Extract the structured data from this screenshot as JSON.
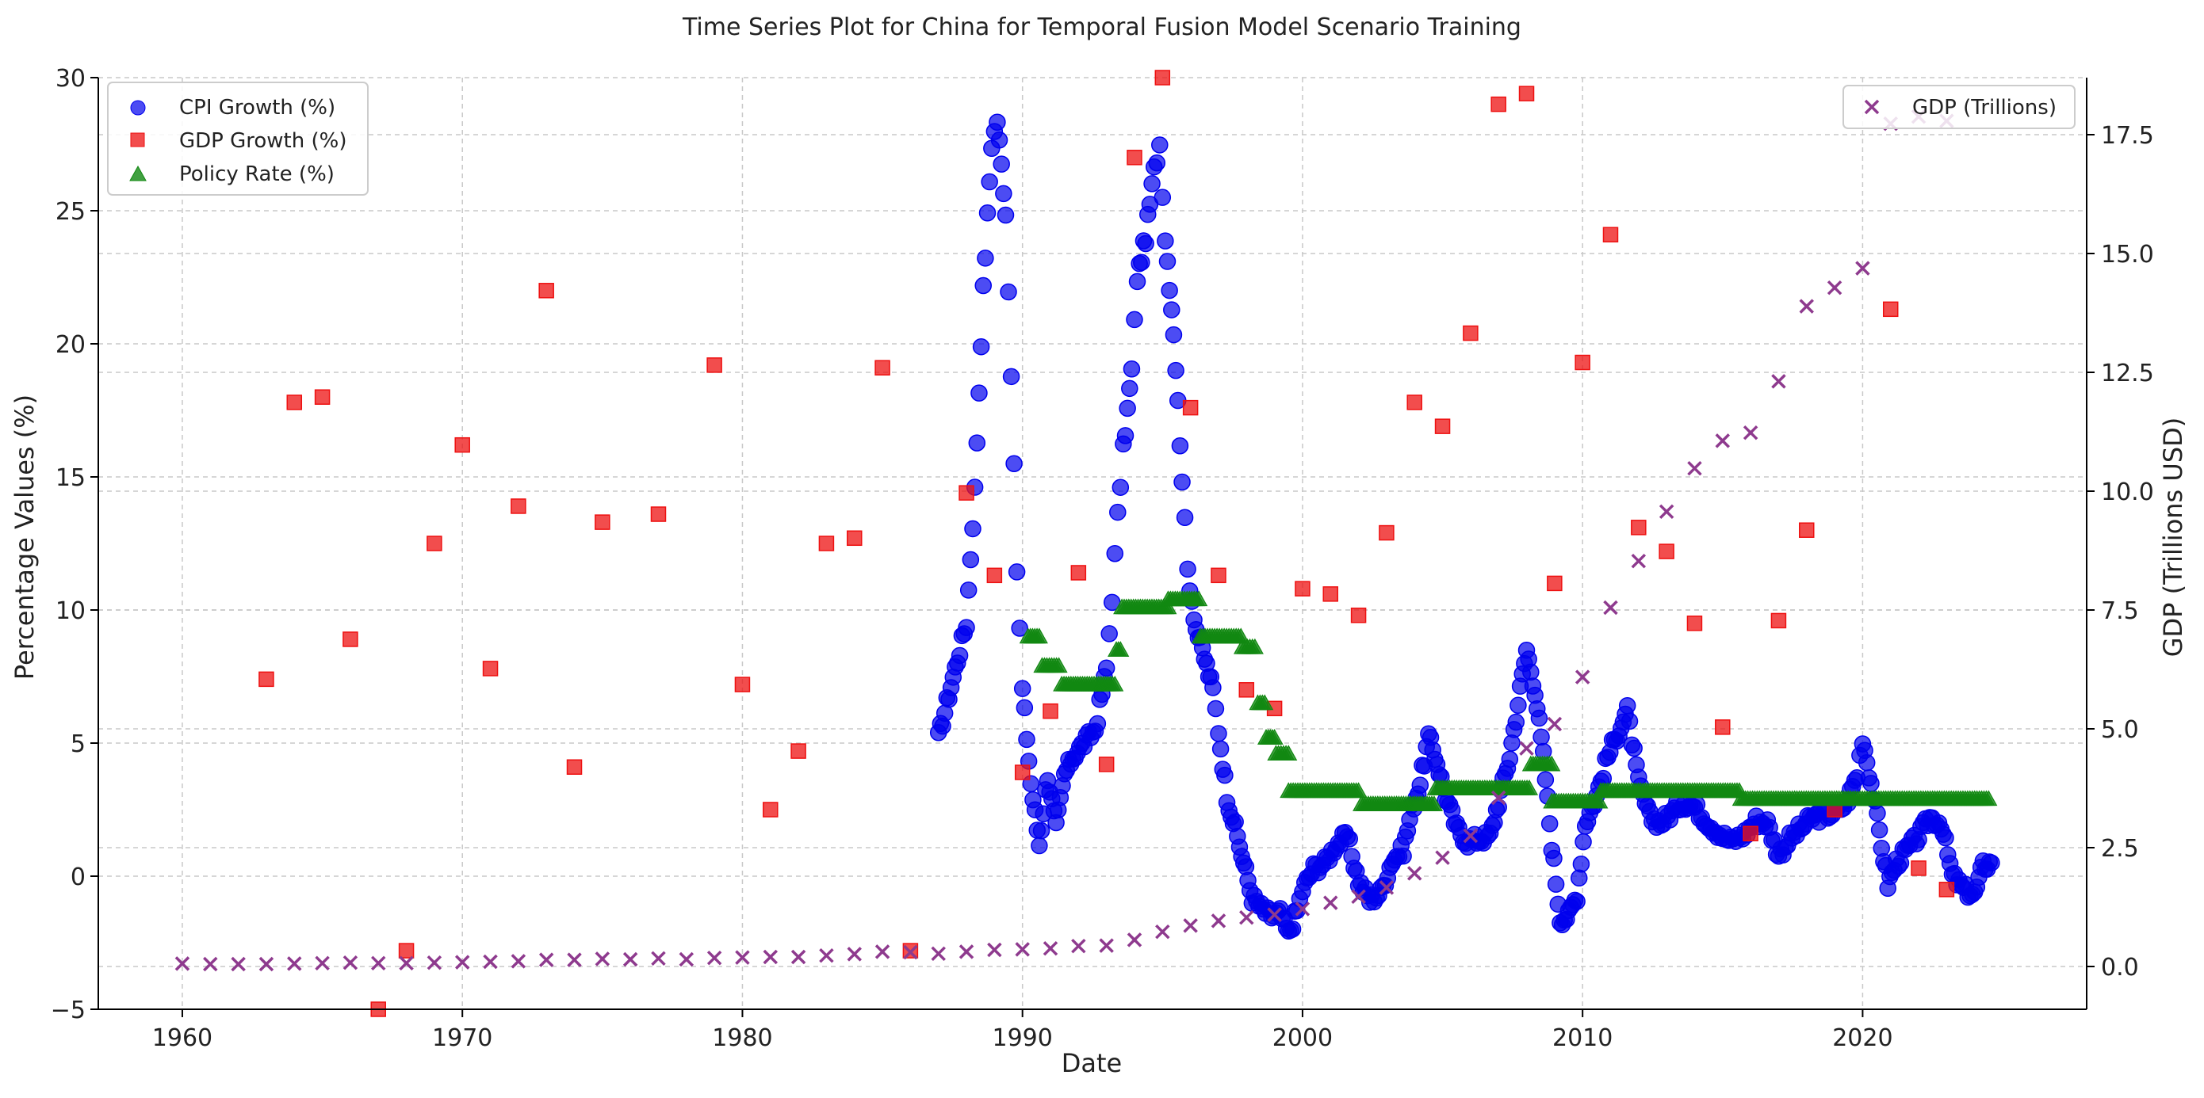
{
  "chart_data": {
    "type": "scatter",
    "title": "Time Series Plot for China for Temporal Fusion Model Scenario Training",
    "xlabel": "Date",
    "ylabel": "Percentage Values (%)",
    "y2label": "GDP (Trillions USD)",
    "xlim": [
      1957,
      2028
    ],
    "ylim": [
      -5,
      30
    ],
    "y2lim": [
      -0.9,
      18.7
    ],
    "x_ticks": [
      1960,
      1970,
      1980,
      1990,
      2000,
      2010,
      2020
    ],
    "x_tick_labels": [
      "1960",
      "1970",
      "1980",
      "1990",
      "2000",
      "2010",
      "2020"
    ],
    "y_ticks": [
      -5,
      0,
      5,
      10,
      15,
      20,
      25,
      30
    ],
    "y_tick_labels": [
      "−5",
      "0",
      "5",
      "10",
      "15",
      "20",
      "25",
      "30"
    ],
    "y2_ticks": [
      0,
      2.5,
      5,
      7.5,
      10,
      12.5,
      15,
      17.5
    ],
    "y2_tick_labels": [
      "0.0",
      "2.5",
      "5.0",
      "7.5",
      "10.0",
      "12.5",
      "15.0",
      "17.5"
    ],
    "grid": true,
    "legend_left": {
      "placement": "top-left",
      "entries": [
        "CPI Growth (%)",
        "GDP Growth (%)",
        "Policy Rate (%)"
      ]
    },
    "legend_right": {
      "placement": "top-right",
      "entries": [
        "GDP (Trillions)"
      ]
    },
    "colors": {
      "cpi": "#0000ee",
      "gdp_growth": "#ee1111",
      "policy": "#118811",
      "gdp": "#8e3a8e"
    },
    "series": [
      {
        "name": "CPI Growth (%)",
        "axis": "left",
        "marker": "circle",
        "knots": [
          [
            1987.0,
            5.2
          ],
          [
            1987.3,
            6.5
          ],
          [
            1987.6,
            7.8
          ],
          [
            1988.0,
            9.5
          ],
          [
            1988.3,
            14.5
          ],
          [
            1988.6,
            22.0
          ],
          [
            1988.9,
            27.5
          ],
          [
            1989.1,
            28.4
          ],
          [
            1989.4,
            25.0
          ],
          [
            1989.6,
            19.0
          ],
          [
            1989.8,
            11.5
          ],
          [
            1990.0,
            7.0
          ],
          [
            1990.3,
            3.5
          ],
          [
            1990.6,
            1.2
          ],
          [
            1990.9,
            3.8
          ],
          [
            1991.2,
            1.8
          ],
          [
            1991.5,
            3.8
          ],
          [
            1991.8,
            4.5
          ],
          [
            1992.2,
            5.0
          ],
          [
            1992.6,
            5.5
          ],
          [
            1993.0,
            7.8
          ],
          [
            1993.2,
            10.5
          ],
          [
            1993.4,
            13.5
          ],
          [
            1993.6,
            16.0
          ],
          [
            1993.9,
            19.0
          ],
          [
            1994.1,
            22.5
          ],
          [
            1994.4,
            24.0
          ],
          [
            1994.7,
            26.5
          ],
          [
            1994.9,
            27.5
          ],
          [
            1995.1,
            24.0
          ],
          [
            1995.4,
            20.5
          ],
          [
            1995.7,
            15.0
          ],
          [
            1995.9,
            11.5
          ],
          [
            1996.2,
            9.3
          ],
          [
            1996.5,
            8.2
          ],
          [
            1996.8,
            7.0
          ],
          [
            1997.0,
            5.5
          ],
          [
            1997.3,
            3.0
          ],
          [
            1997.6,
            1.8
          ],
          [
            1997.9,
            0.5
          ],
          [
            1998.2,
            -0.8
          ],
          [
            1998.6,
            -1.3
          ],
          [
            1998.9,
            -1.5
          ],
          [
            1999.2,
            -1.4
          ],
          [
            1999.5,
            -2.2
          ],
          [
            1999.8,
            -1.3
          ],
          [
            2000.0,
            -0.5
          ],
          [
            2000.4,
            0.3
          ],
          [
            2000.8,
            0.5
          ],
          [
            2001.2,
            1.2
          ],
          [
            2001.6,
            1.5
          ],
          [
            2002.0,
            -0.2
          ],
          [
            2002.4,
            -0.9
          ],
          [
            2002.8,
            -0.6
          ],
          [
            2003.2,
            0.6
          ],
          [
            2003.6,
            1.0
          ],
          [
            2003.9,
            2.5
          ],
          [
            2004.2,
            3.5
          ],
          [
            2004.5,
            5.2
          ],
          [
            2004.8,
            4.3
          ],
          [
            2005.1,
            3.0
          ],
          [
            2005.5,
            1.8
          ],
          [
            2005.9,
            1.3
          ],
          [
            2006.3,
            1.4
          ],
          [
            2006.7,
            1.5
          ],
          [
            2007.0,
            2.8
          ],
          [
            2007.4,
            4.5
          ],
          [
            2007.7,
            6.5
          ],
          [
            2008.0,
            8.5
          ],
          [
            2008.3,
            7.0
          ],
          [
            2008.6,
            4.5
          ],
          [
            2008.9,
            1.2
          ],
          [
            2009.2,
            -1.6
          ],
          [
            2009.5,
            -1.5
          ],
          [
            2009.8,
            -0.7
          ],
          [
            2010.1,
            2.0
          ],
          [
            2010.5,
            3.0
          ],
          [
            2010.9,
            4.5
          ],
          [
            2011.3,
            5.5
          ],
          [
            2011.6,
            6.2
          ],
          [
            2012.0,
            3.5
          ],
          [
            2012.4,
            2.2
          ],
          [
            2012.8,
            2.0
          ],
          [
            2013.2,
            2.4
          ],
          [
            2013.6,
            2.8
          ],
          [
            2014.0,
            2.6
          ],
          [
            2014.5,
            2.0
          ],
          [
            2014.9,
            1.6
          ],
          [
            2015.3,
            1.3
          ],
          [
            2015.8,
            1.6
          ],
          [
            2016.2,
            2.1
          ],
          [
            2016.6,
            2.0
          ],
          [
            2017.0,
            0.8
          ],
          [
            2017.4,
            1.4
          ],
          [
            2017.8,
            1.8
          ],
          [
            2018.2,
            2.2
          ],
          [
            2018.6,
            2.3
          ],
          [
            2019.0,
            2.4
          ],
          [
            2019.4,
            2.7
          ],
          [
            2019.8,
            3.8
          ],
          [
            2020.0,
            5.2
          ],
          [
            2020.3,
            3.5
          ],
          [
            2020.6,
            1.7
          ],
          [
            2020.9,
            -0.3
          ],
          [
            2021.2,
            0.5
          ],
          [
            2021.6,
            1.0
          ],
          [
            2022.0,
            1.5
          ],
          [
            2022.4,
            2.2
          ],
          [
            2022.8,
            2.0
          ],
          [
            2023.2,
            0.0
          ],
          [
            2023.6,
            -0.5
          ],
          [
            2024.0,
            -0.7
          ],
          [
            2024.3,
            0.4
          ],
          [
            2024.6,
            0.5
          ]
        ]
      },
      {
        "name": "GDP Growth (%)",
        "axis": "left",
        "marker": "square",
        "points": [
          [
            1963,
            7.4
          ],
          [
            1964,
            17.8
          ],
          [
            1965,
            18.0
          ],
          [
            1966,
            8.9
          ],
          [
            1967,
            -5.0
          ],
          [
            1968,
            -2.8
          ],
          [
            1969,
            12.5
          ],
          [
            1970,
            16.2
          ],
          [
            1971,
            7.8
          ],
          [
            1972,
            13.9
          ],
          [
            1973,
            22.0
          ],
          [
            1974,
            4.1
          ],
          [
            1975,
            13.3
          ],
          [
            1977,
            13.6
          ],
          [
            1979,
            19.2
          ],
          [
            1980,
            7.2
          ],
          [
            1981,
            2.5
          ],
          [
            1982,
            4.7
          ],
          [
            1983,
            12.5
          ],
          [
            1984,
            12.7
          ],
          [
            1985,
            19.1
          ],
          [
            1986,
            -2.8
          ],
          [
            1988,
            14.4
          ],
          [
            1989,
            11.3
          ],
          [
            1990,
            3.9
          ],
          [
            1991,
            6.2
          ],
          [
            1992,
            11.4
          ],
          [
            1993,
            4.2
          ],
          [
            1994,
            27.0
          ],
          [
            1995,
            30.0
          ],
          [
            1996,
            17.6
          ],
          [
            1997,
            11.3
          ],
          [
            1998,
            7.0
          ],
          [
            1999,
            6.3
          ],
          [
            2000,
            10.8
          ],
          [
            2001,
            10.6
          ],
          [
            2002,
            9.8
          ],
          [
            2003,
            12.9
          ],
          [
            2004,
            17.8
          ],
          [
            2005,
            16.9
          ],
          [
            2006,
            20.4
          ],
          [
            2007,
            29.0
          ],
          [
            2008,
            29.4
          ],
          [
            2009,
            11.0
          ],
          [
            2010,
            19.3
          ],
          [
            2011,
            24.1
          ],
          [
            2012,
            13.1
          ],
          [
            2013,
            12.2
          ],
          [
            2014,
            9.5
          ],
          [
            2015,
            5.6
          ],
          [
            2016,
            1.6
          ],
          [
            2017,
            9.6
          ],
          [
            2018,
            13.0
          ],
          [
            2019,
            2.5
          ],
          [
            2021,
            21.3
          ],
          [
            2022,
            0.3
          ],
          [
            2023,
            -0.5
          ]
        ]
      },
      {
        "name": "Policy Rate (%)",
        "axis": "left",
        "marker": "triangle",
        "segments": [
          [
            1990.2,
            1990.6,
            9.0
          ],
          [
            1990.7,
            1991.3,
            7.9
          ],
          [
            1991.4,
            1993.3,
            7.2
          ],
          [
            1993.35,
            1993.5,
            8.5
          ],
          [
            1993.55,
            1995.2,
            10.1
          ],
          [
            1995.2,
            1996.3,
            10.4
          ],
          [
            1996.35,
            1997.8,
            9.0
          ],
          [
            1997.85,
            1998.3,
            8.6
          ],
          [
            1998.4,
            1998.65,
            6.5
          ],
          [
            1998.7,
            1999.0,
            5.2
          ],
          [
            1999.05,
            1999.5,
            4.6
          ],
          [
            1999.5,
            2002.0,
            3.2
          ],
          [
            2002.1,
            2004.7,
            2.7
          ],
          [
            2004.75,
            2008.1,
            3.3
          ],
          [
            2008.15,
            2008.9,
            4.2
          ],
          [
            2008.9,
            2010.6,
            2.8
          ],
          [
            2010.65,
            2015.6,
            3.2
          ],
          [
            2015.65,
            2024.5,
            2.9
          ]
        ]
      },
      {
        "name": "GDP (Trillions)",
        "axis": "right",
        "marker": "x",
        "points": [
          [
            1960,
            0.06
          ],
          [
            1961,
            0.05
          ],
          [
            1962,
            0.05
          ],
          [
            1963,
            0.05
          ],
          [
            1964,
            0.06
          ],
          [
            1965,
            0.07
          ],
          [
            1966,
            0.08
          ],
          [
            1967,
            0.07
          ],
          [
            1968,
            0.07
          ],
          [
            1969,
            0.08
          ],
          [
            1970,
            0.09
          ],
          [
            1971,
            0.1
          ],
          [
            1972,
            0.11
          ],
          [
            1973,
            0.14
          ],
          [
            1974,
            0.14
          ],
          [
            1975,
            0.16
          ],
          [
            1976,
            0.15
          ],
          [
            1977,
            0.17
          ],
          [
            1978,
            0.15
          ],
          [
            1979,
            0.18
          ],
          [
            1980,
            0.19
          ],
          [
            1981,
            0.2
          ],
          [
            1982,
            0.2
          ],
          [
            1983,
            0.23
          ],
          [
            1984,
            0.26
          ],
          [
            1985,
            0.31
          ],
          [
            1986,
            0.3
          ],
          [
            1987,
            0.27
          ],
          [
            1988,
            0.31
          ],
          [
            1989,
            0.35
          ],
          [
            1990,
            0.36
          ],
          [
            1991,
            0.38
          ],
          [
            1992,
            0.43
          ],
          [
            1993,
            0.44
          ],
          [
            1994,
            0.56
          ],
          [
            1995,
            0.73
          ],
          [
            1996,
            0.86
          ],
          [
            1997,
            0.96
          ],
          [
            1998,
            1.03
          ],
          [
            1999,
            1.09
          ],
          [
            2000,
            1.21
          ],
          [
            2001,
            1.34
          ],
          [
            2002,
            1.47
          ],
          [
            2003,
            1.66
          ],
          [
            2004,
            1.96
          ],
          [
            2005,
            2.29
          ],
          [
            2006,
            2.75
          ],
          [
            2007,
            3.55
          ],
          [
            2008,
            4.59
          ],
          [
            2009,
            5.1
          ],
          [
            2010,
            6.09
          ],
          [
            2011,
            7.55
          ],
          [
            2012,
            8.53
          ],
          [
            2013,
            9.57
          ],
          [
            2014,
            10.48
          ],
          [
            2015,
            11.06
          ],
          [
            2016,
            11.23
          ],
          [
            2017,
            12.31
          ],
          [
            2018,
            13.89
          ],
          [
            2019,
            14.28
          ],
          [
            2020,
            14.69
          ],
          [
            2021,
            17.73
          ],
          [
            2022,
            17.88
          ],
          [
            2023,
            17.79
          ]
        ]
      }
    ]
  }
}
